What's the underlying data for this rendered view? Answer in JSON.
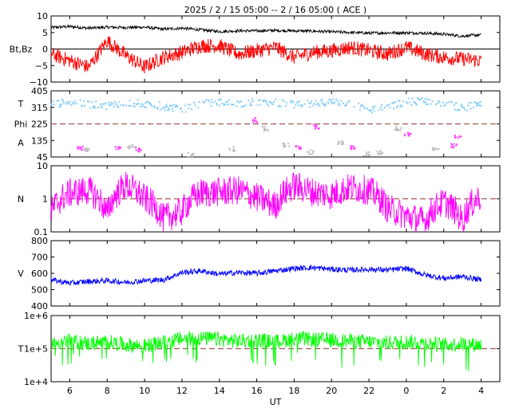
{
  "title": "2025 /  2 / 15   05:00 --  2 / 16   05:00 ( ACE )",
  "xlabel": "UT",
  "x_ticks": [
    "6",
    "8",
    "10",
    "12",
    "14",
    "16",
    "18",
    "20",
    "22",
    "0",
    "2",
    "4"
  ],
  "colors": {
    "bt": "#000000",
    "bz": "#ff0000",
    "theta": "#87cefa",
    "phi_toward": "#ff44ff",
    "phi_away": "#bbbbbb",
    "density": "#ff00ff",
    "speed": "#0000ff",
    "temperature": "#00ff00",
    "reference_line": "#aa5555"
  },
  "chart_data": [
    {
      "type": "line",
      "ylabel": "Bt,Bz",
      "y_ticks": [
        "10",
        "5",
        "0",
        "−5",
        "−10"
      ],
      "ylim": [
        -10,
        10
      ],
      "x_range_hours_ut": [
        5,
        29
      ],
      "grid": false,
      "reference_lines": [
        0
      ],
      "series": [
        {
          "key": "bt",
          "x": [
            5,
            6,
            7,
            8,
            9,
            10,
            11,
            12,
            13,
            14,
            15,
            16,
            17,
            18,
            19,
            20,
            21,
            22,
            23,
            24,
            25,
            26,
            27,
            28
          ],
          "values": [
            6.5,
            6.8,
            6.3,
            6.6,
            6.5,
            6.6,
            6.0,
            6.3,
            5.8,
            5.3,
            5.5,
            5.5,
            5.6,
            5.5,
            5.4,
            5.2,
            5.0,
            4.8,
            4.9,
            4.9,
            4.8,
            4.5,
            3.9,
            4.3
          ]
        },
        {
          "key": "bz",
          "x": [
            5,
            6,
            7,
            8,
            9,
            10,
            11,
            12,
            13,
            14,
            15,
            16,
            17,
            18,
            19,
            20,
            21,
            22,
            23,
            24,
            25,
            26,
            27,
            28
          ],
          "values": [
            -1.5,
            -3.5,
            -5.5,
            2.5,
            -2.0,
            -5.5,
            -2.5,
            -1.0,
            1.0,
            1.0,
            -1.5,
            -0.5,
            0.5,
            -2.5,
            -1.0,
            -0.5,
            0.5,
            -0.5,
            -1.5,
            0.5,
            -1.5,
            -2.5,
            -3.0,
            -3.5
          ]
        }
      ]
    },
    {
      "type": "scatter",
      "ylabels": [
        "T",
        "Phi",
        "A"
      ],
      "y_ticks": [
        "405",
        "315",
        "225",
        "135",
        "45"
      ],
      "ylim": [
        45,
        405
      ],
      "reference_lines": [
        225
      ],
      "series": [
        {
          "key": "theta",
          "x": [
            5,
            6,
            7,
            8,
            9,
            10,
            11,
            12,
            13,
            14,
            15,
            16,
            17,
            18,
            19,
            20,
            21,
            22,
            23,
            24,
            25,
            26,
            27,
            28
          ],
          "values": [
            330,
            345,
            330,
            325,
            340,
            335,
            320,
            305,
            330,
            345,
            335,
            345,
            340,
            330,
            335,
            345,
            335,
            300,
            315,
            345,
            350,
            340,
            310,
            340
          ]
        },
        {
          "key": "phi_toward",
          "x": [
            6.5,
            8.5,
            9.6,
            15.9,
            18.2,
            19.1,
            21.0,
            24.0,
            26.5,
            26.7
          ],
          "values": [
            90,
            95,
            85,
            245,
            100,
            210,
            95,
            170,
            105,
            155
          ]
        },
        {
          "key": "phi_away",
          "x": [
            6.8,
            9.2,
            12.4,
            14.6,
            16.4,
            17.5,
            18.8,
            20.4,
            21.8,
            22.5,
            23.5,
            25.5
          ],
          "values": [
            80,
            100,
            55,
            90,
            200,
            110,
            70,
            120,
            60,
            70,
            200,
            90
          ]
        }
      ]
    },
    {
      "type": "line",
      "ylabel": "N",
      "y_ticks": [
        "10",
        "1",
        "0.1"
      ],
      "ylim": [
        0.1,
        10
      ],
      "log_scale": true,
      "reference_lines": [
        1
      ],
      "series": [
        {
          "key": "density",
          "x": [
            5,
            6,
            7,
            8,
            9,
            10,
            11,
            12,
            13,
            14,
            15,
            16,
            17,
            18,
            19,
            20,
            21,
            22,
            23,
            24,
            25,
            26,
            27,
            28
          ],
          "values": [
            0.4,
            1.5,
            1.8,
            0.3,
            2.5,
            1.0,
            0.25,
            0.4,
            1.5,
            1.6,
            1.8,
            1.1,
            0.6,
            2.5,
            1.6,
            1.3,
            2.2,
            1.8,
            0.5,
            0.3,
            0.2,
            0.8,
            0.2,
            1.2
          ]
        }
      ]
    },
    {
      "type": "line",
      "ylabel": "V",
      "y_ticks": [
        "800",
        "700",
        "600",
        "500",
        "400"
      ],
      "ylim": [
        400,
        800
      ],
      "series": [
        {
          "key": "speed",
          "x": [
            5,
            6,
            7,
            8,
            9,
            10,
            11,
            12,
            13,
            14,
            15,
            16,
            17,
            18,
            19,
            20,
            21,
            22,
            23,
            24,
            25,
            26,
            27,
            28
          ],
          "values": [
            560,
            540,
            550,
            555,
            545,
            555,
            560,
            605,
            615,
            595,
            605,
            600,
            615,
            630,
            635,
            625,
            620,
            625,
            620,
            630,
            590,
            570,
            580,
            560
          ]
        }
      ]
    },
    {
      "type": "line",
      "ylabel": "T",
      "y_ticks": [
        "1e+6",
        "1e+5",
        "1e+4"
      ],
      "ylim": [
        10000,
        1000000
      ],
      "log_scale": true,
      "reference_lines": [
        100000
      ],
      "series": [
        {
          "key": "temperature",
          "x": [
            5,
            6,
            7,
            8,
            9,
            10,
            11,
            12,
            13,
            14,
            15,
            16,
            17,
            18,
            19,
            20,
            21,
            22,
            23,
            24,
            25,
            26,
            27,
            28
          ],
          "values": [
            150000,
            170000,
            140000,
            160000,
            130000,
            120000,
            150000,
            200000,
            210000,
            190000,
            170000,
            180000,
            160000,
            200000,
            190000,
            180000,
            170000,
            160000,
            150000,
            160000,
            150000,
            130000,
            140000,
            130000
          ]
        }
      ]
    }
  ]
}
